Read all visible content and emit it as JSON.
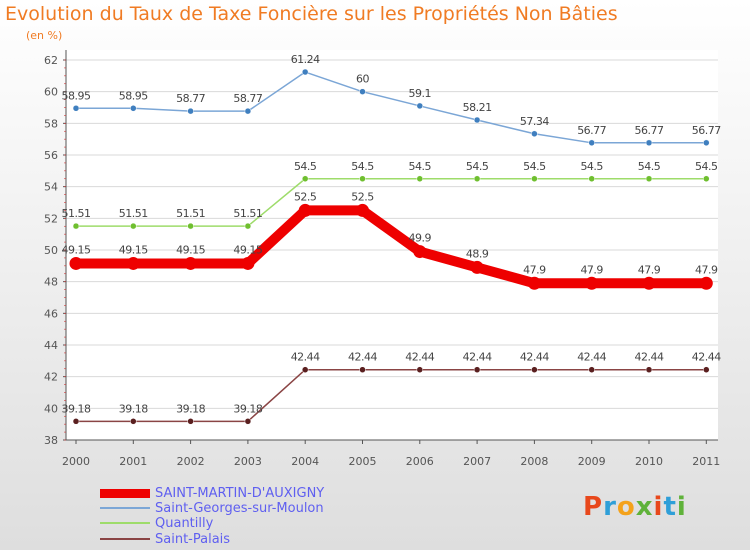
{
  "title": "Evolution du Taux de Taxe Foncière sur les Propriétés Non Bâties",
  "unit_label": "(en %)",
  "logo": {
    "letters": [
      "P",
      "r",
      "o",
      "x",
      "i",
      "t",
      "i"
    ],
    "colors": [
      "#e8481c",
      "#2f9fd8",
      "#f4a21b",
      "#5fb23a",
      "#e8481c",
      "#2f9fd8",
      "#5fb23a"
    ]
  },
  "chart_data": {
    "type": "line",
    "title": "Evolution du Taux de Taxe Foncière sur les Propriétés Non Bâties",
    "ylabel": "(en %)",
    "xlabel": "",
    "x": [
      "2000",
      "2001",
      "2002",
      "2003",
      "2004",
      "2005",
      "2006",
      "2007",
      "2008",
      "2009",
      "2010",
      "2011"
    ],
    "ylim": [
      38,
      62
    ],
    "yticks": [
      38,
      40,
      42,
      44,
      46,
      48,
      50,
      52,
      54,
      56,
      58,
      60,
      62
    ],
    "grid": "horizontal",
    "legend_position": "bottom-left",
    "series": [
      {
        "name": "Saint-Georges-sur-Moulon",
        "color": "#7ba6d6",
        "point_color": "#3f7fbf",
        "width": "thin",
        "values": [
          58.95,
          58.95,
          58.77,
          58.77,
          61.24,
          60,
          59.1,
          58.21,
          57.34,
          56.77,
          56.77,
          56.77
        ],
        "labels": [
          "58.95",
          "58.95",
          "58.77",
          "58.77",
          "61.24",
          "60",
          "59.1",
          "58.21",
          "57.34",
          "56.77",
          "56.77",
          "56.77"
        ]
      },
      {
        "name": "Quantilly",
        "color": "#9edc6a",
        "point_color": "#6fbf2f",
        "width": "thin",
        "values": [
          51.51,
          51.51,
          51.51,
          51.51,
          54.5,
          54.5,
          54.5,
          54.5,
          54.5,
          54.5,
          54.5,
          54.5
        ],
        "labels": [
          "51.51",
          "51.51",
          "51.51",
          "51.51",
          "54.5",
          "54.5",
          "54.5",
          "54.5",
          "54.5",
          "54.5",
          "54.5",
          "54.5"
        ]
      },
      {
        "name": "SAINT-MARTIN-D'AUXIGNY",
        "color": "#ee0000",
        "point_color": "#ee0000",
        "width": "thick",
        "values": [
          49.15,
          49.15,
          49.15,
          49.15,
          52.5,
          52.5,
          49.9,
          48.9,
          47.9,
          47.9,
          47.9,
          47.9
        ],
        "labels": [
          "49.15",
          "49.15",
          "49.15",
          "49.15",
          "52.5",
          "52.5",
          "49.9",
          "48.9",
          "47.9",
          "47.9",
          "47.9",
          "47.9"
        ]
      },
      {
        "name": "Saint-Palais",
        "color": "#8a4444",
        "point_color": "#5a1f1f",
        "width": "thin",
        "values": [
          39.18,
          39.18,
          39.18,
          39.18,
          42.44,
          42.44,
          42.44,
          42.44,
          42.44,
          42.44,
          42.44,
          42.44
        ],
        "labels": [
          "39.18",
          "39.18",
          "39.18",
          "39.18",
          "42.44",
          "42.44",
          "42.44",
          "42.44",
          "42.44",
          "42.44",
          "42.44",
          "42.44"
        ]
      }
    ],
    "legend": [
      "SAINT-MARTIN-D'AUXIGNY",
      "Saint-Georges-sur-Moulon",
      "Quantilly",
      "Saint-Palais"
    ]
  }
}
